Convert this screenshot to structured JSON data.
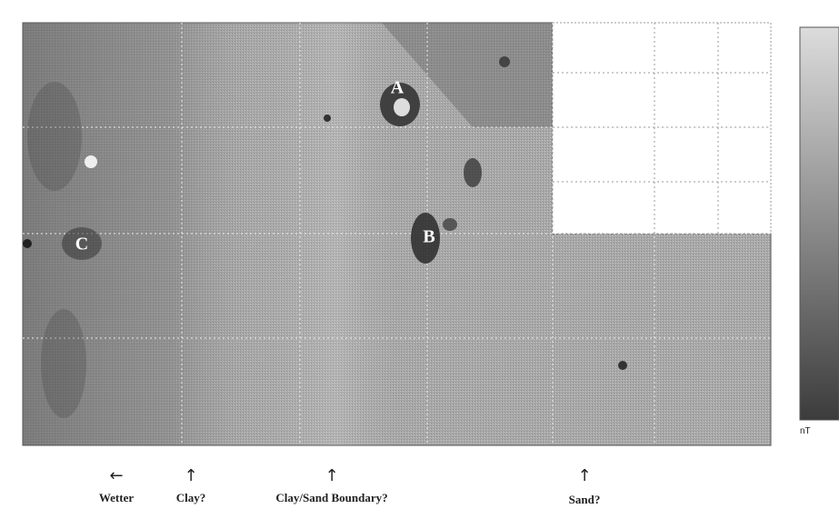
{
  "map": {
    "feature_labels": [
      "A",
      "B",
      "C"
    ],
    "annotations": [
      {
        "arrow": "←",
        "text": "Wetter"
      },
      {
        "arrow": "↑",
        "text": "Clay?"
      },
      {
        "arrow": "↑",
        "text": "Clay/Sand Boundary?"
      },
      {
        "arrow": "↑",
        "text": "Sand?"
      }
    ],
    "legend_unit": "nT"
  }
}
